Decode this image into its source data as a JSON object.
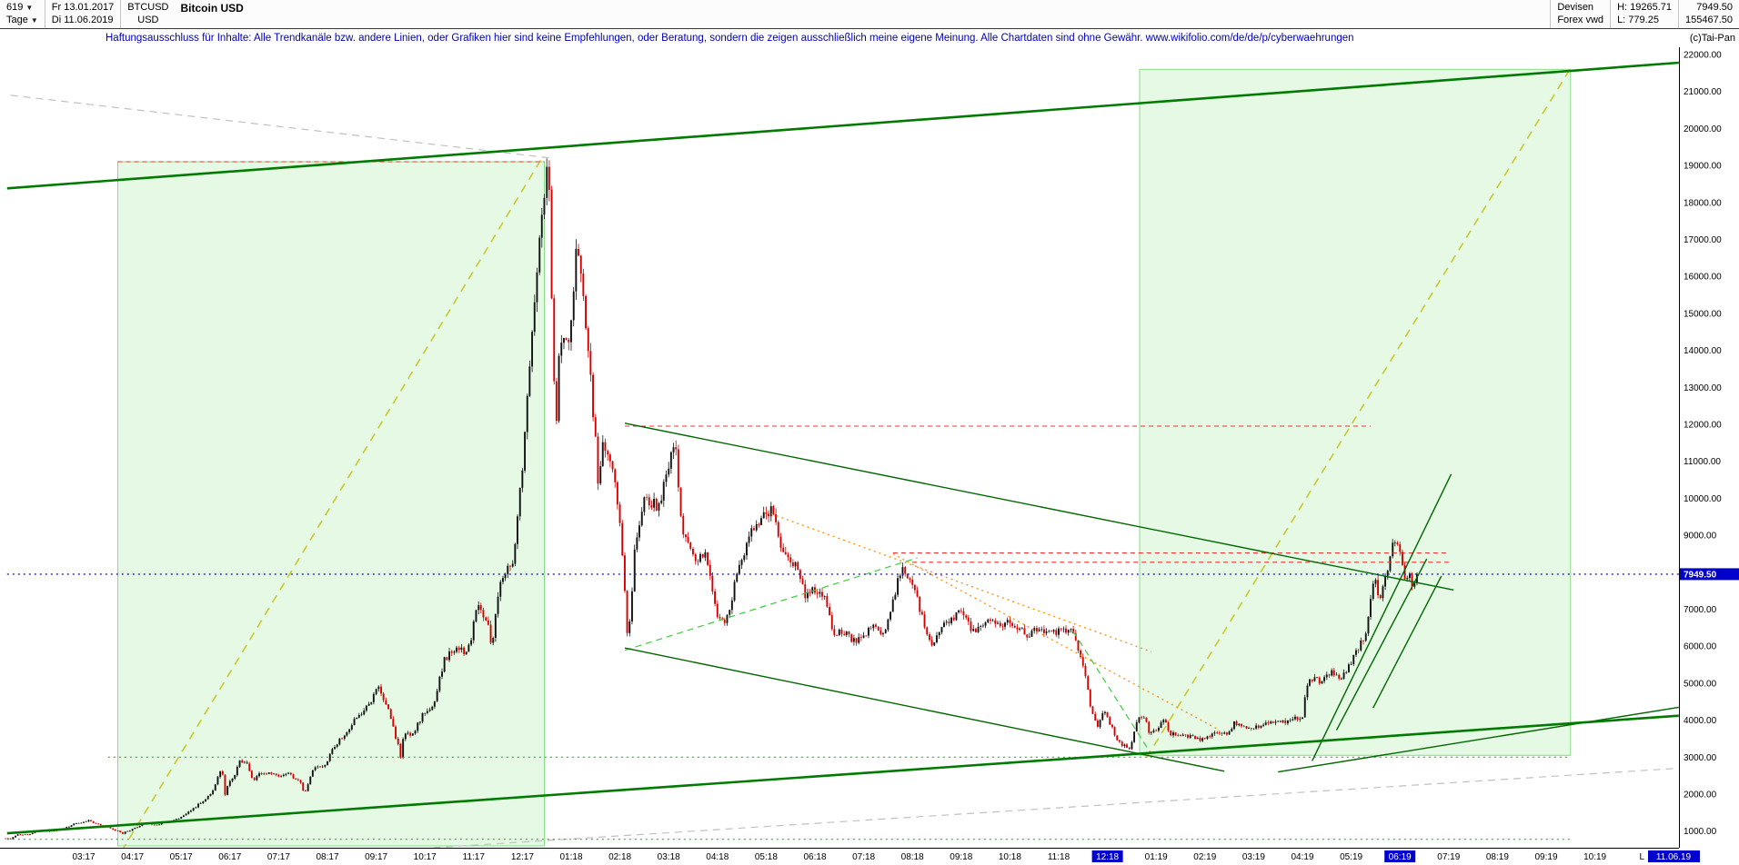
{
  "header": {
    "periods_value": "619",
    "period_type": "Tage",
    "date_from": "Fr 13.01.2017",
    "date_to": "Di 11.06.2019",
    "symbol": "BTCUSD",
    "currency": "USD",
    "title": "Bitcoin USD",
    "market": "Devisen",
    "source": "Forex vwd",
    "high_label": "H: 19265.71",
    "low_label": "L: 779.25",
    "last_price": "7949.50",
    "volume": "155467.50",
    "copyright": "(c)Tai-Pan"
  },
  "disclaimer": {
    "text": "Haftungsausschluss für Inhalte: Alle Trendkanäle bzw. andere Linien, oder Grafiken hier sind keine Empfehlungen, oder Beratung, sondern die zeigen ausschließlich meine eigene Meinung. Alle Chartdaten sind ohne Gewähr.  www.wikifolio.com/de/de/p/cyberwaehrungen"
  },
  "chart_data": {
    "type": "candlestick",
    "symbol": "BTCUSD",
    "title": "Bitcoin USD",
    "x_unit": "months_since_2017_01",
    "x_range": [
      0.43,
      34.72
    ],
    "y_range": [
      550,
      22200
    ],
    "last_close": 7949.5,
    "price_tag": "7949.50",
    "period_high": 19265.71,
    "period_low": 779.25,
    "cursor": {
      "prefix": "L",
      "date": "11.06.19"
    },
    "y_ticks": [
      22000,
      21000,
      20000,
      19000,
      18000,
      17000,
      16000,
      15000,
      14000,
      13000,
      12000,
      11000,
      10000,
      9000,
      8000,
      7000,
      6000,
      5000,
      4000,
      3000,
      2000,
      1000
    ],
    "x_labels": [
      [
        "03:17",
        2,
        0
      ],
      [
        "04:17",
        3,
        0
      ],
      [
        "05:17",
        4,
        0
      ],
      [
        "06:17",
        5,
        0
      ],
      [
        "07:17",
        6,
        0
      ],
      [
        "08:17",
        7,
        0
      ],
      [
        "09:17",
        8,
        0
      ],
      [
        "10:17",
        9,
        0
      ],
      [
        "11:17",
        10,
        0
      ],
      [
        "12:17",
        11,
        0
      ],
      [
        "01:18",
        12,
        0
      ],
      [
        "02:18",
        13,
        0
      ],
      [
        "03:18",
        14,
        0
      ],
      [
        "04:18",
        15,
        0
      ],
      [
        "05:18",
        16,
        0
      ],
      [
        "06:18",
        17,
        0
      ],
      [
        "07:18",
        18,
        0
      ],
      [
        "08:18",
        19,
        0
      ],
      [
        "09:18",
        20,
        0
      ],
      [
        "10:18",
        21,
        0
      ],
      [
        "11:18",
        22,
        0
      ],
      [
        "12:18",
        23,
        1
      ],
      [
        "01:19",
        24,
        0
      ],
      [
        "02:19",
        25,
        0
      ],
      [
        "03:19",
        26,
        0
      ],
      [
        "04:19",
        27,
        0
      ],
      [
        "05:19",
        28,
        0
      ],
      [
        "06:19",
        29,
        1
      ],
      [
        "07:19",
        30,
        0
      ],
      [
        "08:19",
        31,
        0
      ],
      [
        "09:19",
        32,
        0
      ],
      [
        "10:19",
        33,
        0
      ]
    ],
    "close_anchors": [
      [
        0.4,
        805
      ],
      [
        0.5,
        790
      ],
      [
        0.63,
        895
      ],
      [
        0.87,
        920
      ],
      [
        1.1,
        1010
      ],
      [
        1.33,
        1000
      ],
      [
        1.57,
        1055
      ],
      [
        1.8,
        1190
      ],
      [
        2.1,
        1280
      ],
      [
        2.33,
        1180
      ],
      [
        2.57,
        1070
      ],
      [
        2.8,
        940
      ],
      [
        3.03,
        1080
      ],
      [
        3.23,
        1190
      ],
      [
        3.47,
        1180
      ],
      [
        3.7,
        1250
      ],
      [
        3.93,
        1320
      ],
      [
        4.17,
        1550
      ],
      [
        4.4,
        1760
      ],
      [
        4.63,
        2050
      ],
      [
        4.83,
        2700
      ],
      [
        4.9,
        2000
      ],
      [
        4.97,
        2300
      ],
      [
        5.07,
        2420
      ],
      [
        5.17,
        2870
      ],
      [
        5.33,
        2900
      ],
      [
        5.47,
        2350
      ],
      [
        5.6,
        2550
      ],
      [
        5.77,
        2590
      ],
      [
        5.97,
        2480
      ],
      [
        6.23,
        2550
      ],
      [
        6.47,
        2250
      ],
      [
        6.53,
        1960
      ],
      [
        6.7,
        2680
      ],
      [
        6.93,
        2750
      ],
      [
        7.13,
        3250
      ],
      [
        7.37,
        3650
      ],
      [
        7.6,
        4100
      ],
      [
        7.83,
        4350
      ],
      [
        8.03,
        4900
      ],
      [
        8.27,
        4230
      ],
      [
        8.47,
        3200
      ],
      [
        8.5,
        2995
      ],
      [
        8.57,
        3690
      ],
      [
        8.73,
        3600
      ],
      [
        8.97,
        4170
      ],
      [
        9.17,
        4430
      ],
      [
        9.4,
        5640
      ],
      [
        9.63,
        6000
      ],
      [
        9.87,
        5750
      ],
      [
        10.07,
        7050
      ],
      [
        10.3,
        6620
      ],
      [
        10.37,
        5900
      ],
      [
        10.53,
        7770
      ],
      [
        10.8,
        8250
      ],
      [
        11.0,
        10900
      ],
      [
        11.23,
        15000
      ],
      [
        11.33,
        16700
      ],
      [
        11.53,
        19200
      ],
      [
        11.68,
        11600
      ],
      [
        11.75,
        13900
      ],
      [
        11.97,
        14400
      ],
      [
        12.13,
        16950
      ],
      [
        12.37,
        13800
      ],
      [
        12.5,
        11500
      ],
      [
        12.57,
        9900
      ],
      [
        12.63,
        11600
      ],
      [
        12.83,
        11100
      ],
      [
        13.03,
        8850
      ],
      [
        13.17,
        6050
      ],
      [
        13.3,
        8550
      ],
      [
        13.53,
        10100
      ],
      [
        13.77,
        9700
      ],
      [
        14.13,
        11500
      ],
      [
        14.27,
        9200
      ],
      [
        14.5,
        8350
      ],
      [
        14.77,
        8550
      ],
      [
        14.97,
        6930
      ],
      [
        15.17,
        6630
      ],
      [
        15.4,
        7900
      ],
      [
        15.63,
        8850
      ],
      [
        15.8,
        9350
      ],
      [
        16.13,
        9650
      ],
      [
        16.33,
        8450
      ],
      [
        16.57,
        8250
      ],
      [
        16.8,
        7350
      ],
      [
        17.0,
        7500
      ],
      [
        17.23,
        7250
      ],
      [
        17.4,
        6300
      ],
      [
        17.57,
        6450
      ],
      [
        17.77,
        6100
      ],
      [
        17.97,
        6200
      ],
      [
        18.17,
        6600
      ],
      [
        18.4,
        6250
      ],
      [
        18.63,
        7400
      ],
      [
        18.8,
        8200
      ],
      [
        19.07,
        7450
      ],
      [
        19.3,
        6250
      ],
      [
        19.43,
        6000
      ],
      [
        19.53,
        6400
      ],
      [
        19.77,
        6700
      ],
      [
        20.0,
        7030
      ],
      [
        20.13,
        6700
      ],
      [
        20.23,
        6450
      ],
      [
        20.43,
        6530
      ],
      [
        20.67,
        6700
      ],
      [
        20.9,
        6600
      ],
      [
        21.13,
        6600
      ],
      [
        21.33,
        6280
      ],
      [
        21.6,
        6450
      ],
      [
        21.83,
        6480
      ],
      [
        22.03,
        6380
      ],
      [
        22.27,
        6400
      ],
      [
        22.43,
        5750
      ],
      [
        22.5,
        5550
      ],
      [
        22.63,
        4500
      ],
      [
        22.8,
        3800
      ],
      [
        22.93,
        4280
      ],
      [
        23.2,
        3450
      ],
      [
        23.47,
        3200
      ],
      [
        23.63,
        4100
      ],
      [
        23.77,
        4000
      ],
      [
        23.87,
        3650
      ],
      [
        24.0,
        3750
      ],
      [
        24.17,
        4050
      ],
      [
        24.3,
        3620
      ],
      [
        24.43,
        3650
      ],
      [
        24.67,
        3570
      ],
      [
        24.9,
        3450
      ],
      [
        25.23,
        3660
      ],
      [
        25.47,
        3620
      ],
      [
        25.6,
        3950
      ],
      [
        25.77,
        3800
      ],
      [
        26.0,
        3810
      ],
      [
        26.23,
        3940
      ],
      [
        26.5,
        4000
      ],
      [
        26.7,
        3980
      ],
      [
        26.97,
        4100
      ],
      [
        27.0,
        4150
      ],
      [
        27.07,
        4900
      ],
      [
        27.23,
        5200
      ],
      [
        27.37,
        5050
      ],
      [
        27.6,
        5300
      ],
      [
        27.8,
        5150
      ],
      [
        28.07,
        5750
      ],
      [
        28.3,
        6350
      ],
      [
        28.37,
        7000
      ],
      [
        28.47,
        8000
      ],
      [
        28.57,
        7200
      ],
      [
        28.7,
        7950
      ],
      [
        28.87,
        8750
      ],
      [
        28.97,
        8950
      ],
      [
        29.0,
        8550
      ],
      [
        29.1,
        7700
      ],
      [
        29.2,
        7950
      ],
      [
        29.27,
        7650
      ],
      [
        29.37,
        7949.5
      ]
    ],
    "overlays": {
      "rects": [
        {
          "t1": 2.7,
          "t2": 11.45,
          "p1": 600,
          "p2": 19100
        },
        {
          "t1": 23.66,
          "t2": 32.5,
          "p1": 3050,
          "p2": 21600
        }
      ],
      "lines": [
        {
          "t1": 0.5,
          "p1": 20900,
          "t2": 11.6,
          "p2": 19200,
          "style": "gray-dash"
        },
        {
          "t1": 5.0,
          "p1": 200,
          "t2": 34.72,
          "p2": 2700,
          "style": "gray-dash"
        },
        {
          "t1": 2.78,
          "p1": 460,
          "t2": 11.42,
          "p2": 19240,
          "style": "yellow-dash"
        },
        {
          "t1": 23.8,
          "p1": 2980,
          "t2": 32.5,
          "p2": 21630,
          "style": "yellow-dash"
        },
        {
          "t1": 2.5,
          "p1": 3000,
          "t2": 32.5,
          "p2": 3000,
          "style": "green-dot"
        },
        {
          "t1": 0.43,
          "p1": 780,
          "t2": 32.5,
          "p2": 780,
          "style": "green-dot"
        },
        {
          "t1": 13.1,
          "p1": 5890,
          "t2": 19.1,
          "p2": 8390,
          "style": "green-dash"
        },
        {
          "t1": 22.3,
          "p1": 6400,
          "t2": 23.9,
          "p2": 3080,
          "style": "green-dash"
        },
        {
          "t1": 16.0,
          "p1": 9630,
          "t2": 23.9,
          "p2": 5850,
          "style": "orange-dot"
        },
        {
          "t1": 18.6,
          "p1": 8500,
          "t2": 25.3,
          "p2": 3730,
          "style": "orange-dot"
        },
        {
          "t1": 2.7,
          "p1": 19100,
          "t2": 11.45,
          "p2": 19100,
          "style": "red-dash"
        },
        {
          "t1": 13.1,
          "p1": 11950,
          "t2": 28.4,
          "p2": 11950,
          "style": "red-dash"
        },
        {
          "t1": 18.6,
          "p1": 8520,
          "t2": 30.0,
          "p2": 8520,
          "style": "red-dash"
        },
        {
          "t1": 19.0,
          "p1": 8270,
          "t2": 30.0,
          "p2": 8270,
          "style": "red-dash"
        },
        {
          "t1": 13.1,
          "p1": 12030,
          "t2": 30.1,
          "p2": 7520,
          "style": "trend"
        },
        {
          "t1": 13.1,
          "p1": 5950,
          "t2": 25.4,
          "p2": 2620,
          "style": "trend"
        },
        {
          "t1": 26.5,
          "p1": 2600,
          "t2": 34.72,
          "p2": 4350,
          "style": "trend"
        },
        {
          "t1": 27.2,
          "p1": 2900,
          "t2": 30.05,
          "p2": 10650,
          "style": "trend"
        },
        {
          "t1": 27.7,
          "p1": 3730,
          "t2": 29.55,
          "p2": 8360,
          "style": "trend"
        },
        {
          "t1": 28.45,
          "p1": 4330,
          "t2": 29.85,
          "p2": 7900,
          "style": "trend"
        },
        {
          "t1": 0.43,
          "p1": 18380,
          "t2": 34.72,
          "p2": 21780,
          "style": "channel"
        },
        {
          "t1": 0.43,
          "p1": 940,
          "t2": 34.72,
          "p2": 4120,
          "style": "channel"
        },
        {
          "t1": 0.43,
          "p1": 7949.5,
          "t2": 34.72,
          "p2": 7949.5,
          "style": "blue-dot"
        }
      ]
    }
  }
}
